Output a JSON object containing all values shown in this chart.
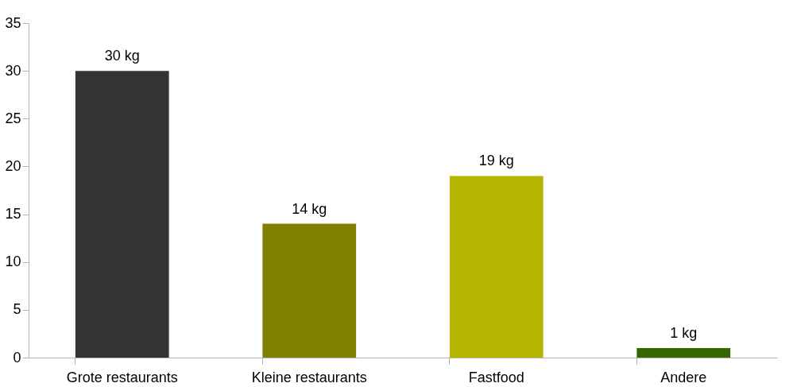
{
  "chart_data": {
    "type": "bar",
    "categories": [
      "Grote restaurants",
      "Kleine restaurants",
      "Fastfood",
      "Andere"
    ],
    "values": [
      30,
      14,
      19,
      1
    ],
    "colors": [
      "#333333",
      "#808000",
      "#b5b500",
      "#336600"
    ],
    "value_labels": [
      "30 kg",
      "14 kg",
      "19 kg",
      "1 kg"
    ],
    "ylim": [
      0,
      35
    ],
    "yticks": [
      0,
      5,
      10,
      15,
      20,
      25,
      30,
      35
    ],
    "grid": false,
    "legend": false
  }
}
